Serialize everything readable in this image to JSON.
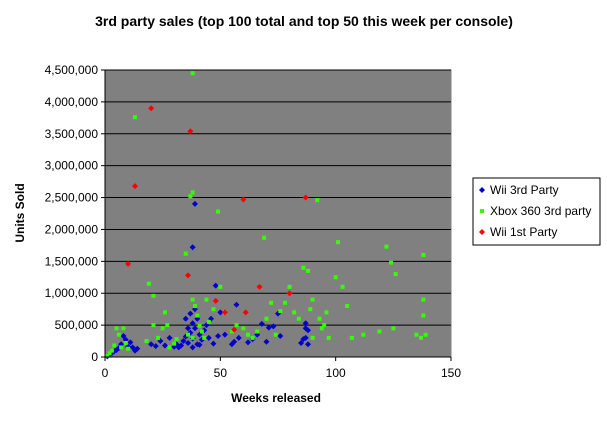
{
  "chart_data": {
    "type": "scatter",
    "title": "3rd party sales (top 100 total and top 50 this week per console)",
    "xlabel": "Weeks released",
    "ylabel": "Units Sold",
    "xlim": [
      0,
      150
    ],
    "ylim": [
      0,
      4500000
    ],
    "x_ticks": [
      "0",
      "50",
      "100",
      "150"
    ],
    "y_ticks": [
      "0",
      "500,000",
      "1,000,000",
      "1,500,000",
      "2,000,000",
      "2,500,000",
      "3,000,000",
      "3,500,000",
      "4,000,000",
      "4,500,000"
    ],
    "grid": "horizontal",
    "plot_background": "#808080",
    "legend_position": "right",
    "series": [
      {
        "name": "Wii 3rd Party",
        "color": "#0000cc",
        "marker": "diamond",
        "points": [
          [
            1,
            10000
          ],
          [
            2,
            40000
          ],
          [
            3,
            60000
          ],
          [
            4,
            90000
          ],
          [
            5,
            110000
          ],
          [
            6,
            140000
          ],
          [
            7,
            200000
          ],
          [
            8,
            330000
          ],
          [
            9,
            270000
          ],
          [
            10,
            160000
          ],
          [
            11,
            230000
          ],
          [
            12,
            150000
          ],
          [
            13,
            100000
          ],
          [
            14,
            130000
          ],
          [
            20,
            200000
          ],
          [
            22,
            170000
          ],
          [
            24,
            250000
          ],
          [
            26,
            180000
          ],
          [
            28,
            300000
          ],
          [
            30,
            160000
          ],
          [
            31,
            200000
          ],
          [
            32,
            150000
          ],
          [
            33,
            180000
          ],
          [
            34,
            250000
          ],
          [
            35,
            320000
          ],
          [
            35,
            600000
          ],
          [
            36,
            450000
          ],
          [
            36,
            220000
          ],
          [
            37,
            680000
          ],
          [
            37,
            380000
          ],
          [
            38,
            150000
          ],
          [
            38,
            290000
          ],
          [
            38,
            530000
          ],
          [
            38,
            1720000
          ],
          [
            39,
            2400000
          ],
          [
            39,
            450000
          ],
          [
            39,
            750000
          ],
          [
            40,
            200000
          ],
          [
            40,
            600000
          ],
          [
            41,
            350000
          ],
          [
            41,
            190000
          ],
          [
            42,
            270000
          ],
          [
            43,
            420000
          ],
          [
            44,
            500000
          ],
          [
            45,
            300000
          ],
          [
            46,
            600000
          ],
          [
            47,
            210000
          ],
          [
            48,
            1120000
          ],
          [
            49,
            330000
          ],
          [
            50,
            700000
          ],
          [
            52,
            350000
          ],
          [
            55,
            200000
          ],
          [
            56,
            240000
          ],
          [
            57,
            820000
          ],
          [
            58,
            300000
          ],
          [
            62,
            230000
          ],
          [
            64,
            280000
          ],
          [
            66,
            350000
          ],
          [
            68,
            520000
          ],
          [
            70,
            240000
          ],
          [
            71,
            460000
          ],
          [
            73,
            480000
          ],
          [
            75,
            680000
          ],
          [
            76,
            330000
          ],
          [
            85,
            220000
          ],
          [
            86,
            280000
          ],
          [
            87,
            300000
          ],
          [
            87,
            450000
          ],
          [
            87,
            530000
          ],
          [
            88,
            200000
          ],
          [
            88,
            420000
          ]
        ]
      },
      {
        "name": "Xbox 360 3rd party",
        "color": "#33ff00",
        "marker": "square",
        "points": [
          [
            1,
            20000
          ],
          [
            2,
            60000
          ],
          [
            3,
            100000
          ],
          [
            4,
            180000
          ],
          [
            5,
            450000
          ],
          [
            6,
            350000
          ],
          [
            7,
            150000
          ],
          [
            8,
            450000
          ],
          [
            9,
            220000
          ],
          [
            10,
            130000
          ],
          [
            13,
            3760000
          ],
          [
            18,
            250000
          ],
          [
            19,
            1150000
          ],
          [
            21,
            960000
          ],
          [
            21,
            500000
          ],
          [
            23,
            300000
          ],
          [
            25,
            450000
          ],
          [
            26,
            700000
          ],
          [
            27,
            500000
          ],
          [
            28,
            150000
          ],
          [
            30,
            210000
          ],
          [
            31,
            280000
          ],
          [
            35,
            1620000
          ],
          [
            36,
            350000
          ],
          [
            37,
            2520000
          ],
          [
            38,
            4450000
          ],
          [
            38,
            2580000
          ],
          [
            38,
            900000
          ],
          [
            38,
            300000
          ],
          [
            39,
            800000
          ],
          [
            40,
            650000
          ],
          [
            41,
            490000
          ],
          [
            42,
            400000
          ],
          [
            43,
            300000
          ],
          [
            44,
            900000
          ],
          [
            45,
            550000
          ],
          [
            47,
            750000
          ],
          [
            49,
            2280000
          ],
          [
            50,
            1100000
          ],
          [
            52,
            700000
          ],
          [
            55,
            400000
          ],
          [
            57,
            500000
          ],
          [
            60,
            450000
          ],
          [
            62,
            350000
          ],
          [
            64,
            300000
          ],
          [
            66,
            400000
          ],
          [
            69,
            1870000
          ],
          [
            70,
            600000
          ],
          [
            72,
            850000
          ],
          [
            74,
            350000
          ],
          [
            76,
            720000
          ],
          [
            78,
            850000
          ],
          [
            80,
            1100000
          ],
          [
            82,
            700000
          ],
          [
            84,
            600000
          ],
          [
            86,
            1400000
          ],
          [
            88,
            1350000
          ],
          [
            89,
            750000
          ],
          [
            90,
            900000
          ],
          [
            90,
            300000
          ],
          [
            92,
            2460000
          ],
          [
            93,
            600000
          ],
          [
            94,
            450000
          ],
          [
            95,
            500000
          ],
          [
            96,
            700000
          ],
          [
            97,
            300000
          ],
          [
            100,
            1250000
          ],
          [
            101,
            1800000
          ],
          [
            103,
            1100000
          ],
          [
            105,
            800000
          ],
          [
            107,
            300000
          ],
          [
            112,
            350000
          ],
          [
            119,
            400000
          ],
          [
            122,
            1730000
          ],
          [
            124,
            1480000
          ],
          [
            125,
            450000
          ],
          [
            126,
            1300000
          ],
          [
            135,
            350000
          ],
          [
            137,
            300000
          ],
          [
            138,
            1600000
          ],
          [
            138,
            900000
          ],
          [
            138,
            650000
          ],
          [
            139,
            350000
          ]
        ]
      },
      {
        "name": "Wii 1st Party",
        "color": "#ff0000",
        "marker": "diamond",
        "points": [
          [
            10,
            1460000
          ],
          [
            13,
            2680000
          ],
          [
            20,
            3900000
          ],
          [
            36,
            1280000
          ],
          [
            37,
            3540000
          ],
          [
            48,
            880000
          ],
          [
            52,
            700000
          ],
          [
            56,
            430000
          ],
          [
            60,
            2470000
          ],
          [
            61,
            700000
          ],
          [
            67,
            1100000
          ],
          [
            80,
            1000000
          ],
          [
            87,
            2500000
          ]
        ]
      }
    ]
  }
}
